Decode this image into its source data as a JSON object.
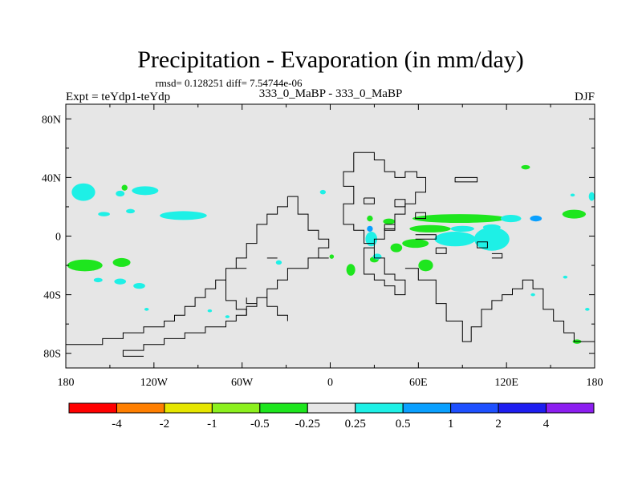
{
  "chart_data": {
    "type": "heatmap",
    "title": "Precipitation - Evaporation (in mm/day)",
    "stats": "rmsd= 0.128251 diff= 7.54744e-06",
    "left_label": "Expt = teYdp1-teYdp",
    "center_label": "333_0_MaBP - 333_0_MaBP",
    "season": "DJF",
    "x_ticks": [
      {
        "value": -180,
        "label": "180"
      },
      {
        "value": -120,
        "label": "120W"
      },
      {
        "value": -60,
        "label": "60W"
      },
      {
        "value": 0,
        "label": "0"
      },
      {
        "value": 60,
        "label": "60E"
      },
      {
        "value": 120,
        "label": "120E"
      },
      {
        "value": 180,
        "label": "180"
      }
    ],
    "y_ticks": [
      {
        "value": 80,
        "label": "80N"
      },
      {
        "value": 40,
        "label": "40N"
      },
      {
        "value": 0,
        "label": "0"
      },
      {
        "value": -40,
        "label": "40S"
      },
      {
        "value": -80,
        "label": "80S"
      }
    ],
    "xlim": [
      -180,
      180
    ],
    "ylim": [
      -90,
      90
    ],
    "colorbar": {
      "colors": [
        "#ff0000",
        "#ff7f00",
        "#e6e600",
        "#8cf01e",
        "#1ee61e",
        "#e6e6e6",
        "#1ef0e6",
        "#0aa0ff",
        "#1e50ff",
        "#1e1ef0",
        "#8c1ef0"
      ],
      "labels": [
        "-4",
        "-2",
        "-1",
        "-0.5",
        "-0.25",
        "0.25",
        "0.5",
        "1",
        "2",
        "4"
      ]
    },
    "background_color": "#e6e6e6",
    "anomalies": [
      {
        "lon": -168,
        "lat": 30,
        "rlon": 8,
        "rlat": 6,
        "c": 6
      },
      {
        "lon": -143,
        "lat": 29,
        "rlon": 3,
        "rlat": 2,
        "c": 6
      },
      {
        "lon": -126,
        "lat": 31,
        "rlon": 9,
        "rlat": 3,
        "c": 6
      },
      {
        "lon": -100,
        "lat": 14,
        "rlon": 16,
        "rlat": 3,
        "c": 6
      },
      {
        "lon": -154,
        "lat": 15,
        "rlon": 4,
        "rlat": 1.5,
        "c": 6
      },
      {
        "lon": -136,
        "lat": 17,
        "rlon": 3,
        "rlat": 1.5,
        "c": 6
      },
      {
        "lon": -140,
        "lat": 33,
        "rlon": 2,
        "rlat": 2,
        "c": 4
      },
      {
        "lon": -167,
        "lat": -20,
        "rlon": 12,
        "rlat": 4,
        "c": 4
      },
      {
        "lon": -142,
        "lat": -18,
        "rlon": 6,
        "rlat": 3,
        "c": 4
      },
      {
        "lon": -158,
        "lat": -30,
        "rlon": 3,
        "rlat": 1.5,
        "c": 6
      },
      {
        "lon": -143,
        "lat": -31,
        "rlon": 4,
        "rlat": 2,
        "c": 6
      },
      {
        "lon": -130,
        "lat": -34,
        "rlon": 4,
        "rlat": 2,
        "c": 6
      },
      {
        "lon": -5,
        "lat": 30,
        "rlon": 2,
        "rlat": 1.5,
        "c": 6
      },
      {
        "lon": -35,
        "lat": -18,
        "rlon": 2,
        "rlat": 1.5,
        "c": 6
      },
      {
        "lon": 1,
        "lat": -14,
        "rlon": 1.5,
        "rlat": 1.5,
        "c": 4
      },
      {
        "lon": 88,
        "lat": 12,
        "rlon": 32,
        "rlat": 3,
        "c": 4
      },
      {
        "lon": 68,
        "lat": 5,
        "rlon": 14,
        "rlat": 2.5,
        "c": 4
      },
      {
        "lon": 40,
        "lat": 10,
        "rlon": 4,
        "rlat": 2,
        "c": 4
      },
      {
        "lon": 27,
        "lat": 12,
        "rlon": 2,
        "rlat": 2,
        "c": 4
      },
      {
        "lon": 45,
        "lat": -8,
        "rlon": 4,
        "rlat": 3,
        "c": 4
      },
      {
        "lon": 58,
        "lat": -5,
        "rlon": 9,
        "rlat": 3,
        "c": 4
      },
      {
        "lon": 30,
        "lat": -16,
        "rlon": 3,
        "rlat": 2,
        "c": 4
      },
      {
        "lon": 65,
        "lat": -20,
        "rlon": 5,
        "rlat": 4,
        "c": 4
      },
      {
        "lon": 14,
        "lat": -23,
        "rlon": 3,
        "rlat": 4,
        "c": 4
      },
      {
        "lon": 28,
        "lat": -2,
        "rlon": 4,
        "rlat": 5,
        "c": 6
      },
      {
        "lon": 32,
        "lat": -14,
        "rlon": 3,
        "rlat": 2,
        "c": 6
      },
      {
        "lon": 85,
        "lat": -2,
        "rlon": 14,
        "rlat": 5,
        "c": 6
      },
      {
        "lon": 110,
        "lat": -2,
        "rlon": 12,
        "rlat": 8,
        "c": 6
      },
      {
        "lon": 90,
        "lat": 5,
        "rlon": 8,
        "rlat": 2,
        "c": 6
      },
      {
        "lon": 110,
        "lat": 6,
        "rlon": 6,
        "rlat": 2,
        "c": 6
      },
      {
        "lon": 27,
        "lat": 5,
        "rlon": 2,
        "rlat": 2,
        "c": 7
      },
      {
        "lon": 123,
        "lat": 12,
        "rlon": 7,
        "rlat": 2.5,
        "c": 6
      },
      {
        "lon": 140,
        "lat": 12,
        "rlon": 4,
        "rlat": 2,
        "c": 7
      },
      {
        "lon": 166,
        "lat": 15,
        "rlon": 8,
        "rlat": 3,
        "c": 4
      },
      {
        "lon": 133,
        "lat": 47,
        "rlon": 3,
        "rlat": 1.5,
        "c": 4
      },
      {
        "lon": 178,
        "lat": 27,
        "rlon": 2,
        "rlat": 3,
        "c": 6
      },
      {
        "lon": 165,
        "lat": 28,
        "rlon": 1.5,
        "rlat": 1,
        "c": 6
      },
      {
        "lon": 160,
        "lat": -28,
        "rlon": 1.5,
        "rlat": 1,
        "c": 6
      },
      {
        "lon": 175,
        "lat": -50,
        "rlon": 1.5,
        "rlat": 1,
        "c": 6
      },
      {
        "lon": 168,
        "lat": -72,
        "rlon": 3,
        "rlat": 1.5,
        "c": 4
      },
      {
        "lon": 138,
        "lat": -40,
        "rlon": 1.5,
        "rlat": 1,
        "c": 6
      },
      {
        "lon": -82,
        "lat": -51,
        "rlon": 1.5,
        "rlat": 1,
        "c": 6
      },
      {
        "lon": -70,
        "lat": -55,
        "rlon": 1.5,
        "rlat": 1,
        "c": 6
      },
      {
        "lon": -125,
        "lat": -50,
        "rlon": 1.5,
        "rlat": 1,
        "c": 6
      }
    ],
    "coastlines": [
      [
        [
          16,
          57
        ],
        [
          30,
          57
        ],
        [
          30,
          52
        ],
        [
          37,
          52
        ],
        [
          37,
          44
        ],
        [
          44,
          44
        ],
        [
          44,
          40
        ],
        [
          51,
          40
        ],
        [
          51,
          44
        ],
        [
          59,
          44
        ],
        [
          59,
          40
        ],
        [
          65,
          40
        ],
        [
          65,
          30
        ],
        [
          58,
          30
        ],
        [
          58,
          22
        ],
        [
          51,
          22
        ],
        [
          51,
          15
        ],
        [
          44,
          15
        ],
        [
          44,
          5
        ],
        [
          37,
          5
        ],
        [
          37,
          -2
        ],
        [
          30,
          -2
        ],
        [
          30,
          -8
        ],
        [
          23,
          -8
        ],
        [
          23,
          -26
        ],
        [
          30,
          -26
        ],
        [
          30,
          -30
        ],
        [
          37,
          -30
        ],
        [
          37,
          -34
        ],
        [
          44,
          -34
        ],
        [
          44,
          -40
        ],
        [
          51,
          -40
        ],
        [
          51,
          -30
        ],
        [
          44,
          -30
        ],
        [
          44,
          -26
        ],
        [
          37,
          -26
        ],
        [
          37,
          -15
        ],
        [
          30,
          -15
        ],
        [
          30,
          -5
        ],
        [
          23,
          -5
        ],
        [
          23,
          4
        ],
        [
          16,
          4
        ],
        [
          16,
          8
        ],
        [
          9,
          8
        ],
        [
          9,
          22
        ],
        [
          16,
          22
        ],
        [
          16,
          34
        ],
        [
          9,
          34
        ],
        [
          9,
          44
        ],
        [
          16,
          44
        ],
        [
          16,
          57
        ]
      ],
      [
        [
          51,
          -22
        ],
        [
          60,
          -22
        ],
        [
          60,
          -30
        ],
        [
          72,
          -30
        ],
        [
          72,
          -46
        ],
        [
          79,
          -46
        ],
        [
          79,
          -58
        ],
        [
          90,
          -58
        ],
        [
          90,
          -72
        ],
        [
          96,
          -72
        ],
        [
          96,
          -62
        ],
        [
          103,
          -62
        ],
        [
          103,
          -50
        ],
        [
          110,
          -50
        ],
        [
          110,
          -44
        ],
        [
          117,
          -44
        ],
        [
          117,
          -40
        ],
        [
          124,
          -40
        ],
        [
          124,
          -36
        ],
        [
          131,
          -36
        ],
        [
          131,
          -30
        ],
        [
          138,
          -30
        ],
        [
          138,
          -36
        ],
        [
          145,
          -36
        ],
        [
          145,
          -50
        ],
        [
          152,
          -50
        ],
        [
          152,
          -58
        ],
        [
          159,
          -58
        ],
        [
          159,
          -66
        ],
        [
          166,
          -66
        ],
        [
          166,
          -72
        ],
        [
          180,
          -72
        ]
      ],
      [
        [
          -29,
          27
        ],
        [
          -29,
          20
        ],
        [
          -36,
          20
        ],
        [
          -36,
          15
        ],
        [
          -43,
          15
        ],
        [
          -43,
          8
        ],
        [
          -50,
          8
        ],
        [
          -50,
          -5
        ],
        [
          -57,
          -5
        ],
        [
          -57,
          -15
        ],
        [
          -64,
          -15
        ],
        [
          -64,
          -22
        ],
        [
          -71,
          -22
        ],
        [
          -71,
          -30
        ],
        [
          -78,
          -30
        ],
        [
          -78,
          -36
        ],
        [
          -85,
          -36
        ],
        [
          -85,
          -42
        ],
        [
          -92,
          -42
        ],
        [
          -92,
          -48
        ],
        [
          -99,
          -48
        ],
        [
          -99,
          -54
        ],
        [
          -106,
          -54
        ],
        [
          -106,
          -58
        ],
        [
          -113,
          -58
        ],
        [
          -113,
          -62
        ],
        [
          -127,
          -62
        ],
        [
          -127,
          -66
        ],
        [
          -141,
          -66
        ],
        [
          -141,
          -70
        ],
        [
          -155,
          -70
        ],
        [
          -155,
          -74
        ],
        [
          -180,
          -74
        ]
      ],
      [
        [
          -29,
          27
        ],
        [
          -22,
          27
        ],
        [
          -22,
          15
        ],
        [
          -15,
          15
        ],
        [
          -15,
          4
        ],
        [
          -8,
          4
        ],
        [
          -8,
          -2
        ],
        [
          -1,
          -2
        ],
        [
          -1,
          -8
        ],
        [
          -8,
          -8
        ],
        [
          -8,
          -15
        ],
        [
          -15,
          -15
        ],
        [
          -15,
          -22
        ],
        [
          -29,
          -22
        ],
        [
          -29,
          -30
        ],
        [
          -36,
          -30
        ],
        [
          -36,
          -36
        ],
        [
          -43,
          -36
        ],
        [
          -43,
          -42
        ],
        [
          -50,
          -42
        ],
        [
          -50,
          -48
        ],
        [
          -57,
          -48
        ],
        [
          -57,
          -54
        ],
        [
          -64,
          -54
        ],
        [
          -64,
          -58
        ],
        [
          -71,
          -58
        ],
        [
          -71,
          -62
        ],
        [
          -85,
          -62
        ],
        [
          -85,
          -66
        ],
        [
          -99,
          -66
        ],
        [
          -99,
          -70
        ],
        [
          -113,
          -70
        ],
        [
          -113,
          -74
        ],
        [
          -127,
          -74
        ],
        [
          -127,
          -78
        ],
        [
          -141,
          -78
        ],
        [
          -141,
          -82
        ],
        [
          -127,
          -82
        ]
      ],
      [
        [
          -71,
          -30
        ],
        [
          -71,
          -44
        ],
        [
          -64,
          -44
        ],
        [
          -64,
          -50
        ],
        [
          -57,
          -50
        ],
        [
          -57,
          -54
        ]
      ],
      [
        [
          -43,
          -42
        ],
        [
          -43,
          -48
        ],
        [
          -36,
          -48
        ],
        [
          -36,
          -54
        ],
        [
          -29,
          -54
        ],
        [
          -29,
          -58
        ]
      ],
      [
        [
          -57,
          -42
        ],
        [
          -57,
          -46
        ],
        [
          -50,
          -46
        ]
      ],
      [
        [
          -64,
          -22
        ],
        [
          -57,
          -22
        ]
      ],
      [
        [
          -43,
          -15
        ],
        [
          -36,
          -15
        ]
      ],
      [
        [
          85,
          40
        ],
        [
          100,
          40
        ],
        [
          100,
          37
        ],
        [
          85,
          37
        ],
        [
          85,
          40
        ]
      ],
      [
        [
          58,
          16
        ],
        [
          65,
          16
        ],
        [
          65,
          12
        ],
        [
          58,
          12
        ],
        [
          58,
          16
        ]
      ],
      [
        [
          44,
          25
        ],
        [
          51,
          25
        ],
        [
          51,
          20
        ],
        [
          44,
          20
        ],
        [
          44,
          25
        ]
      ],
      [
        [
          72,
          -8
        ],
        [
          79,
          -8
        ],
        [
          79,
          -12
        ],
        [
          72,
          -12
        ],
        [
          72,
          -8
        ]
      ],
      [
        [
          23,
          26
        ],
        [
          30,
          26
        ],
        [
          30,
          22
        ],
        [
          23,
          22
        ],
        [
          23,
          26
        ]
      ],
      [
        [
          37,
          8
        ],
        [
          44,
          8
        ],
        [
          44,
          4
        ],
        [
          37,
          4
        ],
        [
          37,
          8
        ]
      ],
      [
        [
          100,
          -4
        ],
        [
          107,
          -4
        ],
        [
          107,
          -8
        ],
        [
          100,
          -8
        ],
        [
          100,
          -4
        ]
      ],
      [
        [
          58,
          1
        ],
        [
          72,
          1
        ],
        [
          72,
          -2
        ],
        [
          58,
          -2
        ]
      ],
      [
        [
          110,
          -12
        ],
        [
          117,
          -12
        ],
        [
          117,
          -15
        ],
        [
          110,
          -15
        ]
      ],
      [
        [
          -8,
          -15
        ],
        [
          -1,
          -15
        ]
      ]
    ]
  }
}
